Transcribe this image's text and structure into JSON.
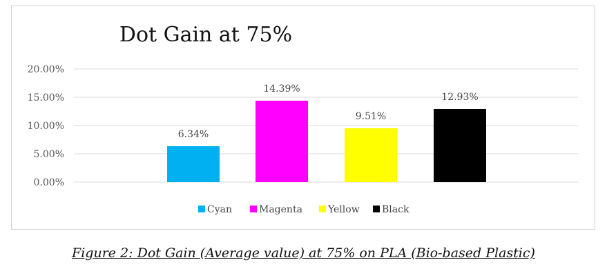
{
  "chart_data": {
    "type": "bar",
    "title": "Dot Gain at 75%",
    "categories": [
      "Cyan",
      "Magenta",
      "Yellow",
      "Black"
    ],
    "values": [
      6.34,
      14.39,
      9.51,
      12.93
    ],
    "data_labels": [
      "6.34%",
      "14.39%",
      "9.51%",
      "12.93%"
    ],
    "colors": [
      "#00b0f0",
      "#ff00ff",
      "#ffff00",
      "#000000"
    ],
    "ylim": [
      0,
      20
    ],
    "yticks": [
      0,
      5,
      10,
      15,
      20
    ],
    "ytick_labels": [
      "0.00%",
      "5.00%",
      "10.00%",
      "15.00%",
      "20.00%"
    ],
    "xlabel": "",
    "ylabel": "",
    "grid": true,
    "legend": "bottom"
  },
  "caption": "Figure 2: Dot Gain (Average value) at 75% on PLA (Bio-based Plastic)"
}
